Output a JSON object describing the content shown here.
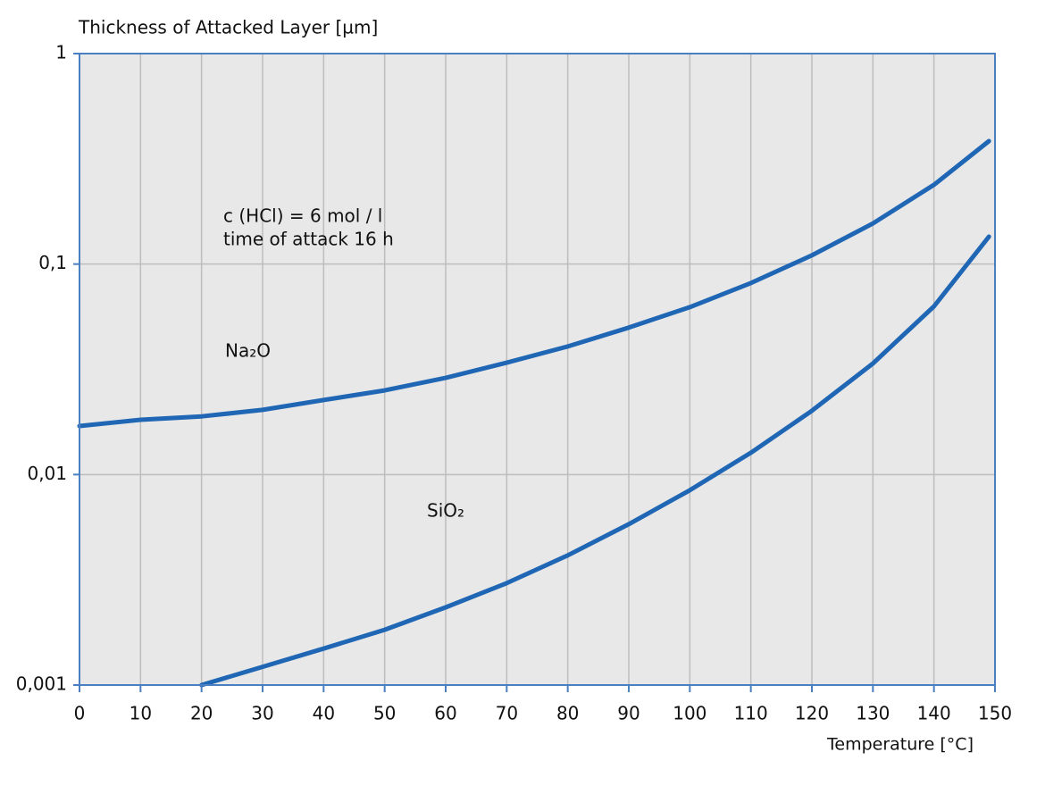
{
  "chart_data": {
    "type": "line",
    "y_label": "Thickness of Attacked Layer [µm]",
    "x_label": "Temperature [°C]",
    "annotations": [
      "c (HCl) = 6 mol / l",
      "time of attack  16 h"
    ],
    "xlim": [
      0,
      150
    ],
    "xticks": [
      0,
      10,
      20,
      30,
      40,
      50,
      60,
      70,
      80,
      90,
      100,
      110,
      120,
      130,
      140,
      150
    ],
    "ylim": [
      0.001,
      1
    ],
    "ylog": true,
    "yticks": [
      {
        "value": 0.001,
        "label": "0,001"
      },
      {
        "value": 0.01,
        "label": "0,01"
      },
      {
        "value": 0.1,
        "label": "0,1"
      },
      1
    ],
    "grid": true,
    "series": [
      {
        "name": "Na₂O",
        "color": "#1f66b5",
        "x": [
          0,
          10,
          20,
          30,
          40,
          50,
          60,
          70,
          80,
          90,
          100,
          110,
          120,
          130,
          140,
          149
        ],
        "values": [
          0.017,
          0.0182,
          0.0189,
          0.0203,
          0.0226,
          0.0251,
          0.0288,
          0.034,
          0.0406,
          0.0499,
          0.0624,
          0.0813,
          0.11,
          0.156,
          0.238,
          0.384
        ]
      },
      {
        "name": "SiO₂",
        "color": "#1f66b5",
        "x": [
          20,
          30,
          40,
          50,
          60,
          70,
          80,
          90,
          100,
          110,
          120,
          130,
          140,
          149
        ],
        "values": [
          0.001,
          0.00122,
          0.00149,
          0.00183,
          0.00234,
          0.00305,
          0.00413,
          0.00581,
          0.00842,
          0.0127,
          0.0201,
          0.0337,
          0.063,
          0.135
        ]
      }
    ]
  }
}
